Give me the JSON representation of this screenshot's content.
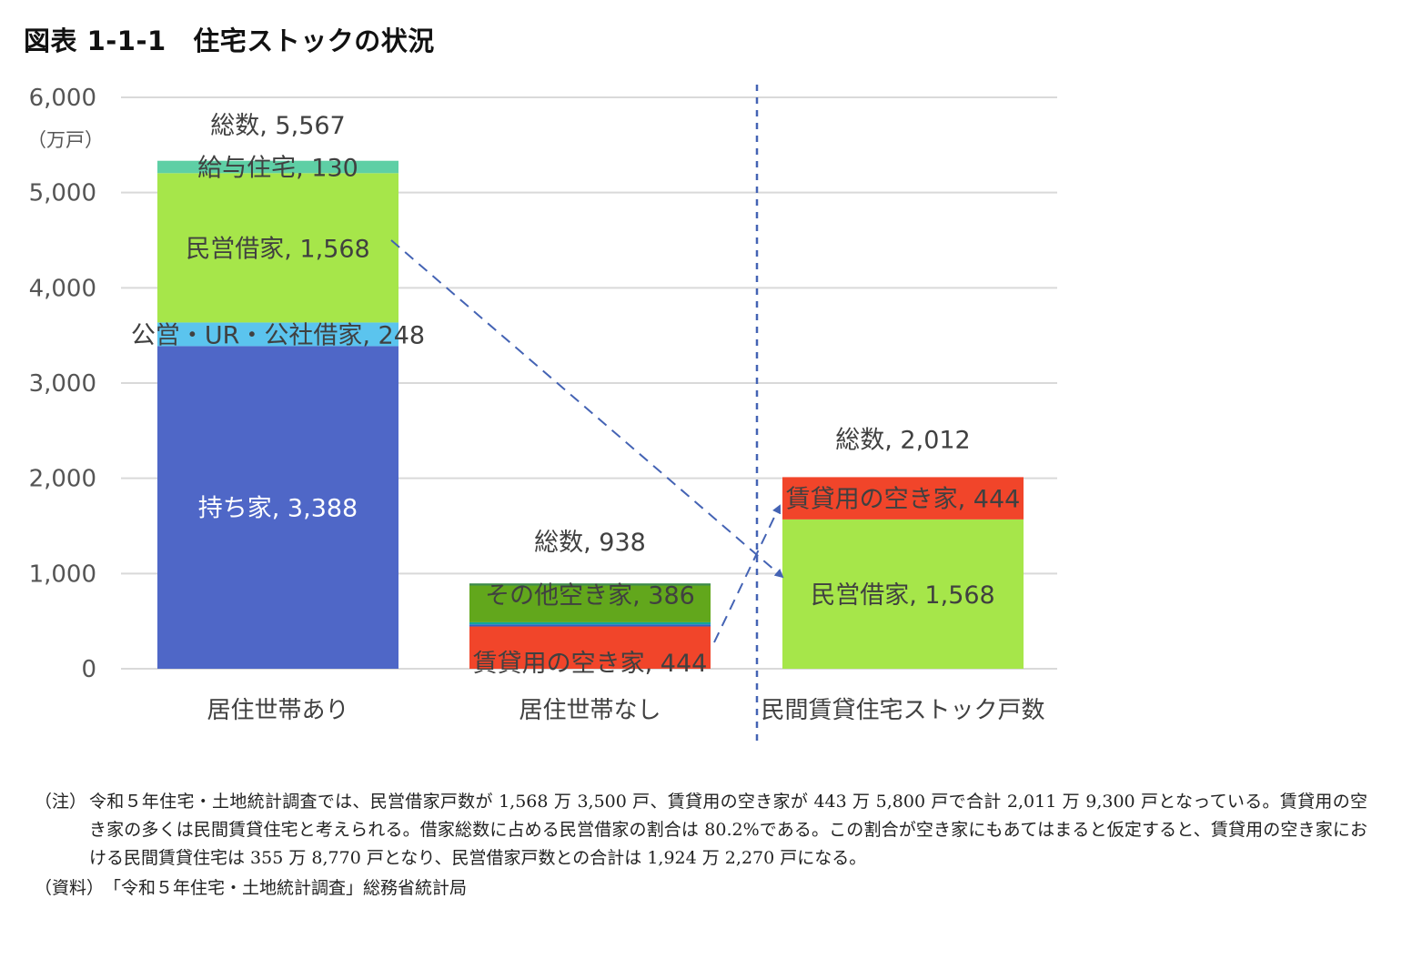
{
  "chart_data": {
    "type": "bar",
    "title": "図表 1-1-1　住宅ストックの状況",
    "ylabel": "（万戸）",
    "ylim": [
      0,
      6000
    ],
    "yticks": [
      0,
      1000,
      2000,
      3000,
      4000,
      5000,
      6000
    ],
    "ytick_labels": [
      "0",
      "1,000",
      "2,000",
      "3,000",
      "4,000",
      "5,000",
      "6,000"
    ],
    "grid": true,
    "categories": [
      "居住世帯あり",
      "居住世帯なし",
      "民間賃貸住宅ストック戸数"
    ],
    "stacks": [
      {
        "total": 5567,
        "total_label": "総数, 5,567",
        "segments": [
          {
            "label": "持ち家, 3,388",
            "value": 3388,
            "color": "#4f67c7"
          },
          {
            "label": "公営・UR・公社借家, 248",
            "value": 248,
            "color": "#5bc4ee"
          },
          {
            "label": "民営借家, 1,568",
            "value": 1568,
            "color": "#a6e64a"
          },
          {
            "label": "給与住宅, 130",
            "value": 130,
            "color": "#5ecfa5"
          }
        ]
      },
      {
        "total": 938,
        "total_label": "総数, 938",
        "segments": [
          {
            "label": "賃貸用の空き家, 444",
            "value": 444,
            "color": "#f1452a"
          },
          {
            "label": "",
            "value": 22,
            "color": "#2e62c4"
          },
          {
            "label": "",
            "value": 22,
            "color": "#12a59b"
          },
          {
            "label": "その他空き家, 386",
            "value": 386,
            "color": "#62a71c"
          },
          {
            "label": "",
            "value": 22,
            "color": "#3d8a4a"
          }
        ]
      },
      {
        "total": 2012,
        "total_label": "総数, 2,012",
        "segments": [
          {
            "label": "民営借家, 1,568",
            "value": 1568,
            "color": "#a6e64a"
          },
          {
            "label": "賃貸用の空き家, 444",
            "value": 444,
            "color": "#f1452a"
          }
        ]
      }
    ],
    "annotations": {
      "divider": "vertical dashed line between 居住世帯なし and 民間賃貸住宅ストック戸数",
      "arrows": [
        "民営借家 (居住世帯あり) → 民営借家 (民間賃貸住宅ストック戸数)",
        "賃貸用の空き家 (居住世帯なし) → 賃貸用の空き家 (民間賃貸住宅ストック戸数)"
      ],
      "arrow_color": "#4463b4"
    }
  },
  "notes": {
    "note_label": "（注）",
    "note_text": "令和５年住宅・土地統計調査では、民営借家戸数が 1,568 万 3,500 戸、賃貸用の空き家が 443 万 5,800 戸で合計 2,011 万 9,300 戸となっている。賃貸用の空き家の多くは民間賃貸住宅と考えられる。借家総数に占める民営借家の割合は 80.2%である。この割合が空き家にもあてはまると仮定すると、賃貸用の空き家における民間賃貸住宅は 355 万 8,770 戸となり、民営借家戸数との合計は 1,924 万 2,270 戸になる。",
    "source_label": "（資料）",
    "source_text": "「令和５年住宅・土地統計調査」総務省統計局"
  }
}
